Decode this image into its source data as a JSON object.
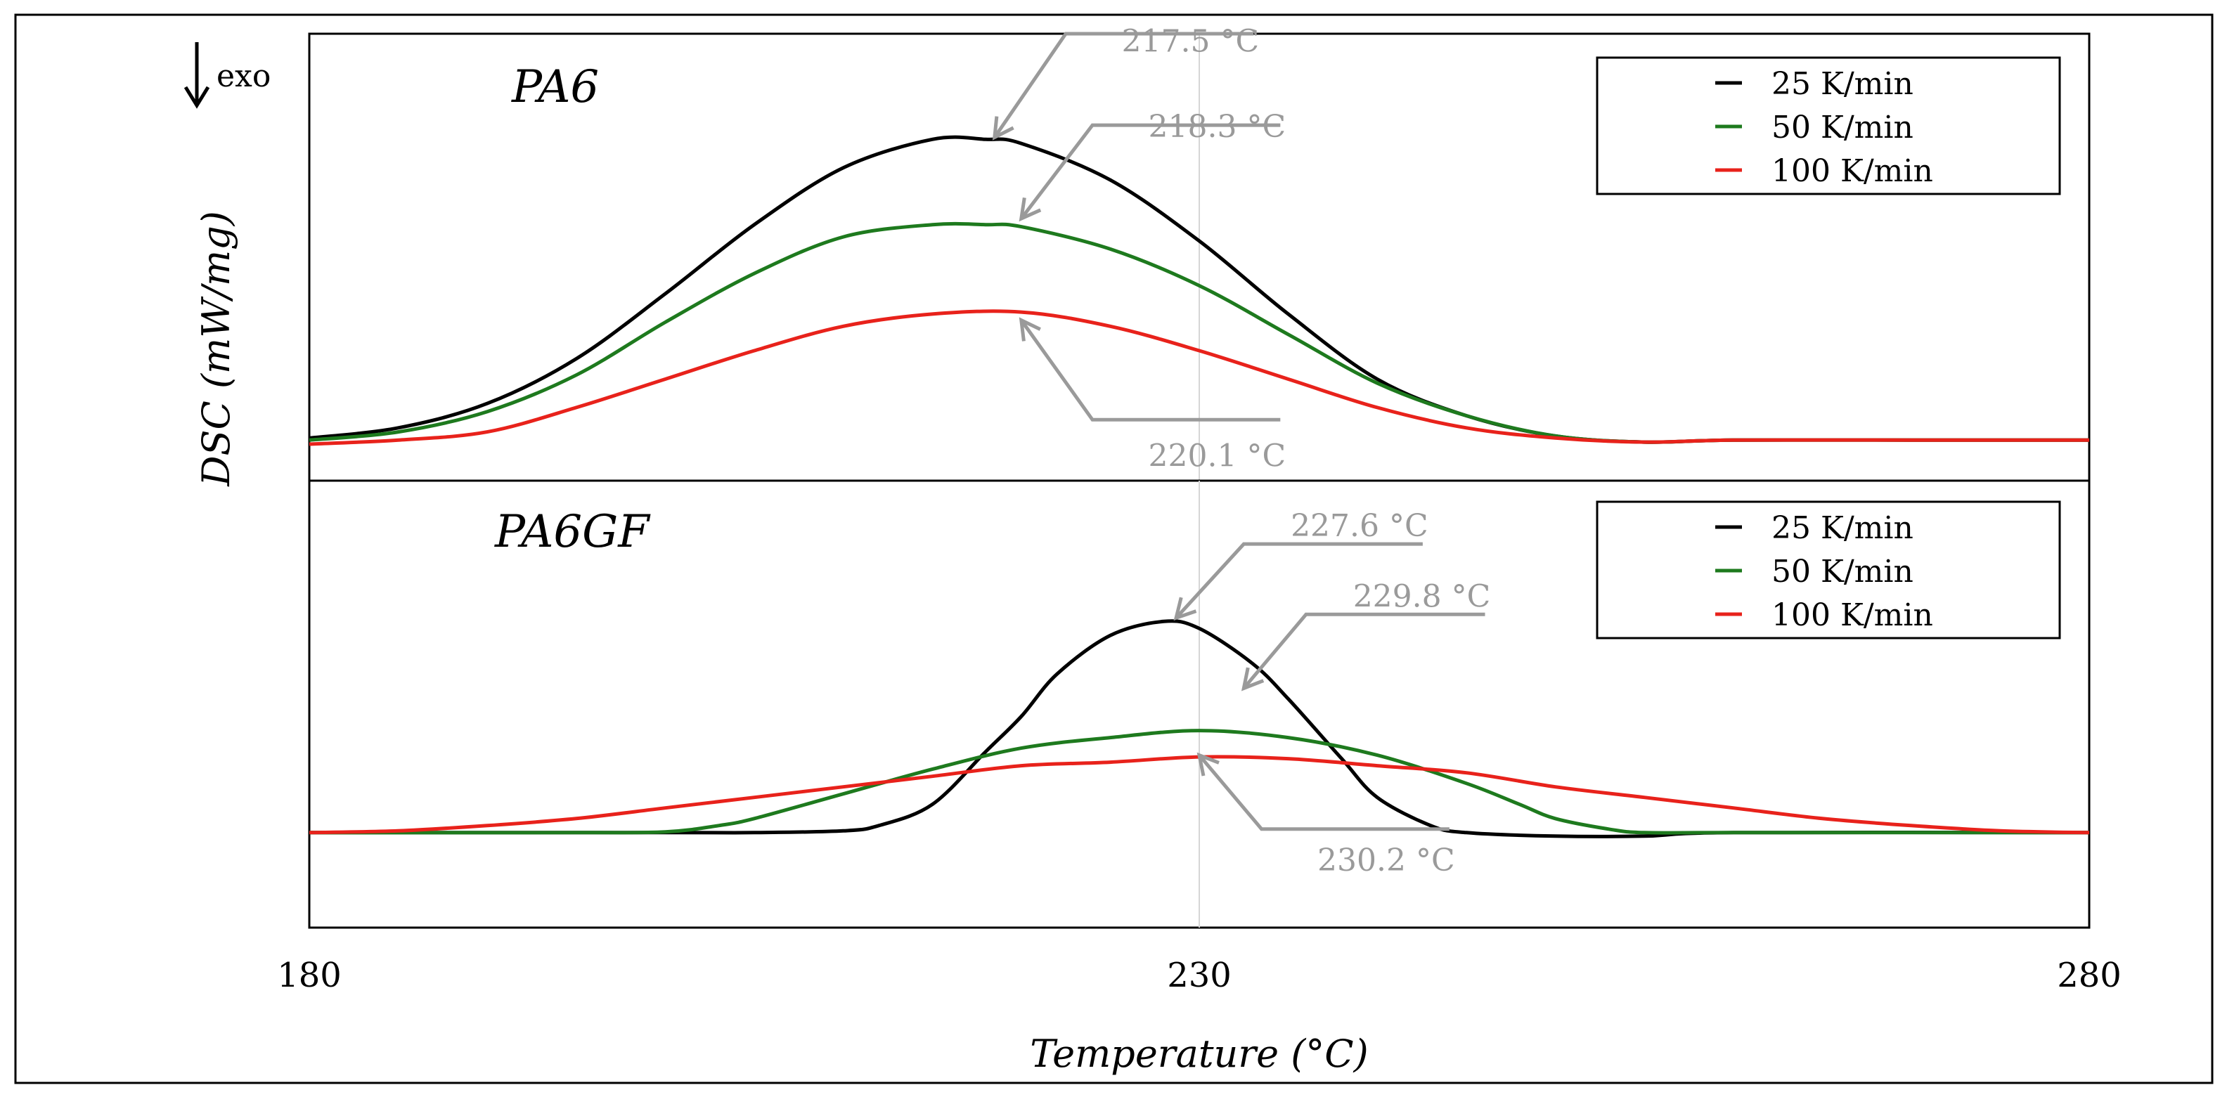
{
  "chart_data": {
    "type": "line",
    "ylabel": "DSC (mW/mg)",
    "xlabel": "Temperature (°C)",
    "exo_label": "exo",
    "xlim": [
      180,
      280
    ],
    "xticks": [
      "180",
      "230",
      "280"
    ],
    "reference_line_x": 230,
    "series_styles": [
      {
        "name": "25 K/min",
        "color": "#000000"
      },
      {
        "name": "50 K/min",
        "color": "#1e7a1e"
      },
      {
        "name": "100 K/min",
        "color": "#e8221b"
      }
    ],
    "annotation_color": "#9a9a9a",
    "panels": [
      {
        "title": "PA6",
        "legend_position": "top-right",
        "ylim": [
          -0.1,
          1.0
        ],
        "series": [
          {
            "name": "25 K/min",
            "points": [
              [
                180,
                0.005
              ],
              [
                185,
                0.03
              ],
              [
                190,
                0.09
              ],
              [
                195,
                0.2
              ],
              [
                200,
                0.36
              ],
              [
                205,
                0.53
              ],
              [
                210,
                0.67
              ],
              [
                215,
                0.74
              ],
              [
                218,
                0.74
              ],
              [
                220,
                0.73
              ],
              [
                225,
                0.64
              ],
              [
                230,
                0.49
              ],
              [
                235,
                0.31
              ],
              [
                240,
                0.15
              ],
              [
                245,
                0.06
              ],
              [
                250,
                0.01
              ],
              [
                255,
                -0.005
              ],
              [
                260,
                0.0
              ],
              [
                270,
                0.0
              ],
              [
                280,
                0.0
              ]
            ]
          },
          {
            "name": "50 K/min",
            "points": [
              [
                180,
                0.0
              ],
              [
                185,
                0.02
              ],
              [
                190,
                0.07
              ],
              [
                195,
                0.16
              ],
              [
                200,
                0.29
              ],
              [
                205,
                0.41
              ],
              [
                210,
                0.5
              ],
              [
                215,
                0.53
              ],
              [
                218,
                0.53
              ],
              [
                220,
                0.525
              ],
              [
                225,
                0.47
              ],
              [
                230,
                0.38
              ],
              [
                235,
                0.26
              ],
              [
                240,
                0.14
              ],
              [
                245,
                0.06
              ],
              [
                250,
                0.01
              ],
              [
                255,
                -0.005
              ],
              [
                260,
                0.0
              ],
              [
                270,
                0.0
              ],
              [
                280,
                0.0
              ]
            ]
          },
          {
            "name": "100 K/min",
            "points": [
              [
                180,
                -0.01
              ],
              [
                185,
                0.0
              ],
              [
                190,
                0.02
              ],
              [
                195,
                0.08
              ],
              [
                200,
                0.15
              ],
              [
                205,
                0.22
              ],
              [
                210,
                0.28
              ],
              [
                215,
                0.31
              ],
              [
                220,
                0.315
              ],
              [
                225,
                0.28
              ],
              [
                230,
                0.22
              ],
              [
                235,
                0.15
              ],
              [
                240,
                0.08
              ],
              [
                245,
                0.03
              ],
              [
                250,
                0.005
              ],
              [
                255,
                -0.005
              ],
              [
                260,
                0.0
              ],
              [
                270,
                0.0
              ],
              [
                280,
                0.0
              ]
            ]
          }
        ],
        "annotations": [
          {
            "label": "217.5 °C",
            "peak": [
              218.5,
              0.745
            ],
            "text_at": [
              229.5,
              0.98
            ],
            "elbow": [
              222.5,
              1.0
            ]
          },
          {
            "label": "218.3 °C",
            "peak": [
              220.0,
              0.545
            ],
            "text_at": [
              231.0,
              0.77
            ],
            "elbow": [
              224.0,
              0.775
            ]
          },
          {
            "label": "220.1 °C",
            "peak": [
              220.0,
              0.295
            ],
            "text_at": [
              231.0,
              -0.04
            ],
            "elbow": [
              224.0,
              0.05
            ]
          }
        ]
      },
      {
        "title": "PA6GF",
        "legend_position": "top-right",
        "ylim": [
          -0.27,
          1.0
        ],
        "series": [
          {
            "name": "25 K/min",
            "points": [
              [
                180,
                0.0
              ],
              [
                200,
                0.0
              ],
              [
                205,
                0.0
              ],
              [
                210,
                0.005
              ],
              [
                212,
                0.02
              ],
              [
                215,
                0.08
              ],
              [
                218,
                0.23
              ],
              [
                220,
                0.33
              ],
              [
                222,
                0.45
              ],
              [
                225,
                0.56
              ],
              [
                228,
                0.6
              ],
              [
                230,
                0.58
              ],
              [
                233,
                0.48
              ],
              [
                235,
                0.38
              ],
              [
                238,
                0.21
              ],
              [
                240,
                0.1
              ],
              [
                243,
                0.02
              ],
              [
                245,
                0.0
              ],
              [
                250,
                -0.01
              ],
              [
                255,
                -0.01
              ],
              [
                260,
                0.0
              ],
              [
                280,
                0.0
              ]
            ]
          },
          {
            "name": "50 K/min",
            "points": [
              [
                180,
                0.0
              ],
              [
                195,
                0.0
              ],
              [
                200,
                0.002
              ],
              [
                203,
                0.02
              ],
              [
                205,
                0.04
              ],
              [
                210,
                0.11
              ],
              [
                215,
                0.18
              ],
              [
                220,
                0.24
              ],
              [
                225,
                0.27
              ],
              [
                230,
                0.29
              ],
              [
                235,
                0.27
              ],
              [
                240,
                0.22
              ],
              [
                245,
                0.14
              ],
              [
                248,
                0.08
              ],
              [
                250,
                0.04
              ],
              [
                253,
                0.01
              ],
              [
                255,
                0.0
              ],
              [
                260,
                0.0
              ],
              [
                280,
                0.0
              ]
            ]
          },
          {
            "name": "100 K/min",
            "points": [
              [
                180,
                0.0
              ],
              [
                185,
                0.005
              ],
              [
                190,
                0.02
              ],
              [
                195,
                0.04
              ],
              [
                200,
                0.07
              ],
              [
                205,
                0.1
              ],
              [
                210,
                0.13
              ],
              [
                215,
                0.16
              ],
              [
                220,
                0.19
              ],
              [
                225,
                0.2
              ],
              [
                230,
                0.215
              ],
              [
                235,
                0.21
              ],
              [
                240,
                0.19
              ],
              [
                245,
                0.17
              ],
              [
                250,
                0.13
              ],
              [
                255,
                0.1
              ],
              [
                260,
                0.07
              ],
              [
                265,
                0.04
              ],
              [
                270,
                0.02
              ],
              [
                275,
                0.005
              ],
              [
                280,
                0.0
              ]
            ]
          }
        ],
        "annotations": [
          {
            "label": "227.6 °C",
            "peak": [
              228.7,
              0.61
            ],
            "text_at": [
              239.0,
              0.87
            ],
            "elbow": [
              232.5,
              0.82
            ]
          },
          {
            "label": "229.8 °C",
            "peak": [
              232.5,
              0.41
            ],
            "text_at": [
              242.5,
              0.67
            ],
            "elbow": [
              236.0,
              0.62
            ]
          },
          {
            "label": "230.2 °C",
            "peak": [
              230.0,
              0.22
            ],
            "text_at": [
              240.5,
              -0.08
            ],
            "elbow": [
              233.5,
              0.01
            ]
          }
        ]
      }
    ]
  }
}
